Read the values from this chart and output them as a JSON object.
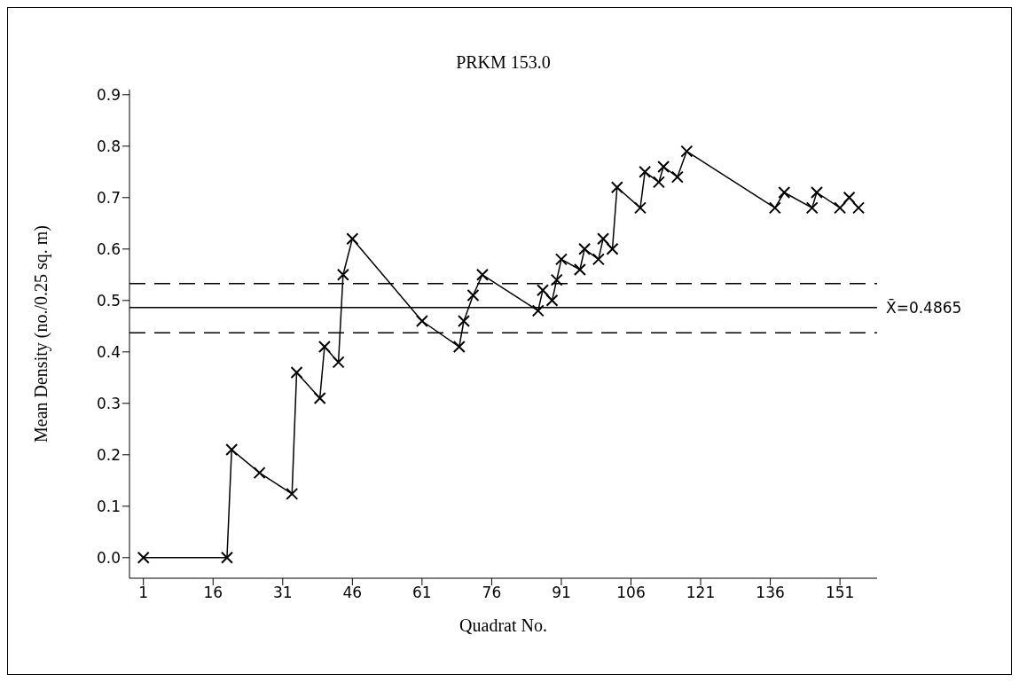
{
  "chart_data": {
    "type": "line",
    "title": "PRKM 153.0",
    "xlabel": "Quadrat No.",
    "ylabel": "Mean Density (no./0.25 sq. m)",
    "x": [
      1,
      19,
      20,
      26,
      33,
      34,
      39,
      40,
      43,
      44,
      46,
      61,
      69,
      70,
      72,
      74,
      86,
      87,
      89,
      90,
      91,
      95,
      96,
      99,
      100,
      102,
      103,
      108,
      109,
      112,
      113,
      116,
      118,
      137,
      139,
      145,
      146,
      151,
      153,
      155
    ],
    "series": [
      {
        "color": "#000000",
        "values": [
          0,
          0,
          0.21,
          0.165,
          0.124,
          0.36,
          0.31,
          0.41,
          0.38,
          0.55,
          0.62,
          0.46,
          0.41,
          0.46,
          0.51,
          0.55,
          0.48,
          0.52,
          0.5,
          0.54,
          0.58,
          0.56,
          0.6,
          0.58,
          0.62,
          0.6,
          0.72,
          0.68,
          0.75,
          0.73,
          0.76,
          0.74,
          0.79,
          0.68,
          0.71,
          0.68,
          0.71,
          0.68,
          0.7,
          0.68
        ]
      }
    ],
    "xlim": [
      -2,
      159
    ],
    "xticks": [
      1,
      16,
      31,
      46,
      61,
      76,
      91,
      106,
      121,
      136,
      151
    ],
    "ylim": [
      -0.04,
      0.91
    ],
    "yticks": [
      {
        "value": 0,
        "label": "0.0"
      },
      0.1,
      0.2,
      0.3,
      0.4,
      0.5,
      0.6,
      0.7,
      0.8,
      0.9
    ],
    "ref_lines": [
      {
        "axis": "y",
        "value": 0.4865,
        "label": "X̄=0.4865",
        "line_style": "solid"
      },
      {
        "axis": "y",
        "value": 0.533,
        "line_style": "dashed"
      },
      {
        "axis": "y",
        "value": 0.437,
        "line_style": "dashed"
      }
    ],
    "grid": false,
    "legend": false,
    "marker": "cross",
    "line_style": "solid"
  }
}
